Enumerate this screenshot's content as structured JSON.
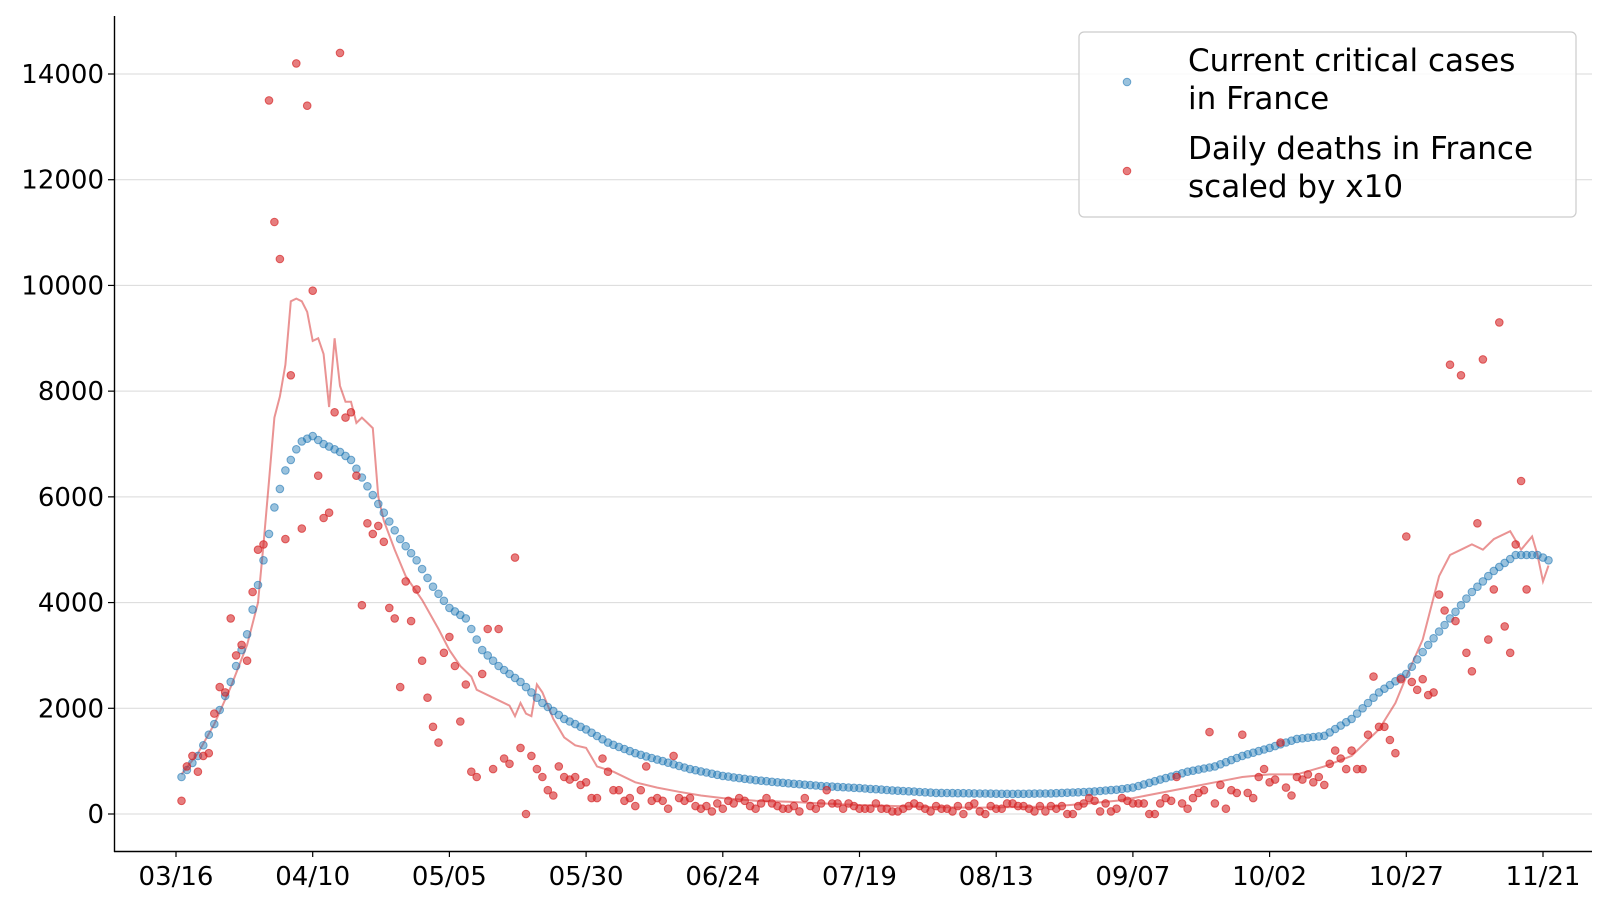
{
  "chart_data": {
    "type": "scatter",
    "x_unit": "date (2020)",
    "x_ticks": [
      "03/16",
      "04/10",
      "05/05",
      "05/30",
      "06/24",
      "07/19",
      "08/13",
      "09/07",
      "10/02",
      "10/27",
      "11/21"
    ],
    "y_ticks": [
      "0",
      "2000",
      "4000",
      "6000",
      "8000",
      "10000",
      "12000",
      "14000"
    ],
    "xlim": [
      "2020-03-15",
      "2020-11-26"
    ],
    "ylim": [
      -700,
      15000
    ],
    "grid": "y",
    "legend_position": "top-right",
    "x_start": "2020-03-17",
    "colors": {
      "critical": "#1f77b4",
      "deaths": "#d62728",
      "grid": "#d9d9d9"
    },
    "series": [
      {
        "name": "Current critical cases in France",
        "legend_lines": [
          "Current critical cases",
          "in France"
        ],
        "kind": "points",
        "anchors": [
          [
            "2020-03-17",
            700
          ],
          [
            "2020-03-20",
            1100
          ],
          [
            "2020-03-23",
            1700
          ],
          [
            "2020-03-26",
            2500
          ],
          [
            "2020-03-29",
            3400
          ],
          [
            "2020-04-01",
            4800
          ],
          [
            "2020-04-03",
            5800
          ],
          [
            "2020-04-05",
            6500
          ],
          [
            "2020-04-07",
            6900
          ],
          [
            "2020-04-08",
            7050
          ],
          [
            "2020-04-10",
            7150
          ],
          [
            "2020-04-12",
            7000
          ],
          [
            "2020-04-15",
            6850
          ],
          [
            "2020-04-17",
            6700
          ],
          [
            "2020-04-20",
            6200
          ],
          [
            "2020-04-23",
            5700
          ],
          [
            "2020-04-26",
            5200
          ],
          [
            "2020-04-29",
            4800
          ],
          [
            "2020-05-02",
            4300
          ],
          [
            "2020-05-05",
            3900
          ],
          [
            "2020-05-08",
            3700
          ],
          [
            "2020-05-11",
            3100
          ],
          [
            "2020-05-14",
            2800
          ],
          [
            "2020-05-18",
            2500
          ],
          [
            "2020-05-22",
            2100
          ],
          [
            "2020-05-26",
            1800
          ],
          [
            "2020-05-30",
            1600
          ],
          [
            "2020-06-03",
            1350
          ],
          [
            "2020-06-08",
            1150
          ],
          [
            "2020-06-13",
            1000
          ],
          [
            "2020-06-18",
            850
          ],
          [
            "2020-06-24",
            720
          ],
          [
            "2020-06-30",
            640
          ],
          [
            "2020-07-06",
            580
          ],
          [
            "2020-07-12",
            530
          ],
          [
            "2020-07-19",
            490
          ],
          [
            "2020-07-26",
            440
          ],
          [
            "2020-08-02",
            400
          ],
          [
            "2020-08-09",
            390
          ],
          [
            "2020-08-16",
            380
          ],
          [
            "2020-08-23",
            390
          ],
          [
            "2020-08-30",
            420
          ],
          [
            "2020-09-04",
            460
          ],
          [
            "2020-09-07",
            500
          ],
          [
            "2020-09-12",
            650
          ],
          [
            "2020-09-17",
            800
          ],
          [
            "2020-09-22",
            900
          ],
          [
            "2020-09-27",
            1100
          ],
          [
            "2020-10-02",
            1250
          ],
          [
            "2020-10-07",
            1420
          ],
          [
            "2020-10-12",
            1480
          ],
          [
            "2020-10-17",
            1800
          ],
          [
            "2020-10-22",
            2300
          ],
          [
            "2020-10-27",
            2650
          ],
          [
            "2020-10-31",
            3200
          ],
          [
            "2020-11-04",
            3700
          ],
          [
            "2020-11-08",
            4200
          ],
          [
            "2020-11-12",
            4600
          ],
          [
            "2020-11-16",
            4900
          ],
          [
            "2020-11-20",
            4900
          ],
          [
            "2020-11-22",
            4800
          ]
        ]
      },
      {
        "name": "Daily deaths in France scaled by x10",
        "legend_lines": [
          "Daily deaths in France",
          "scaled by x10"
        ],
        "kind": "points",
        "values": [
          250,
          900,
          1100,
          800,
          1100,
          1150,
          1900,
          2400,
          2300,
          3700,
          3000,
          3200,
          2900,
          4200,
          5000,
          5100,
          13500,
          11200,
          10500,
          5200,
          8300,
          14200,
          5400,
          13400,
          9900,
          6400,
          5600,
          5700,
          7600,
          14400,
          7500,
          7600,
          6400,
          3950,
          5500,
          5300,
          5450,
          5150,
          3900,
          3700,
          2400,
          4400,
          3650,
          4250,
          2900,
          2200,
          1650,
          1350,
          3050,
          3350,
          2800,
          1750,
          2450,
          800,
          700,
          2650,
          3500,
          850,
          3500,
          1050,
          950,
          4850,
          1250,
          0,
          1100,
          850,
          700,
          450,
          350,
          900,
          700,
          650,
          700,
          550,
          600,
          300,
          300,
          1050,
          800,
          450,
          450,
          250,
          300,
          150,
          450,
          900,
          250,
          300,
          250,
          100,
          1100,
          300,
          250,
          300,
          150,
          100,
          150,
          50,
          200,
          100,
          250,
          200,
          300,
          250,
          150,
          100,
          200,
          300,
          200,
          150,
          100,
          100,
          150,
          50,
          300,
          150,
          100,
          200,
          450,
          200,
          200,
          100,
          200,
          150,
          100,
          100,
          100,
          200,
          100,
          100,
          50,
          50,
          100,
          150,
          200,
          150,
          100,
          50,
          150,
          100,
          100,
          50,
          150,
          0,
          150,
          200,
          50,
          0,
          150,
          100,
          100,
          200,
          200,
          150,
          150,
          100,
          50,
          150,
          50,
          150,
          100,
          150,
          0,
          0,
          150,
          200,
          300,
          250,
          50,
          200,
          50,
          100,
          300,
          250,
          200,
          200,
          200,
          0,
          0,
          200,
          300,
          250,
          700,
          200,
          100,
          300,
          400,
          450,
          1550,
          200,
          550,
          100,
          450,
          400,
          1500,
          400,
          300,
          700,
          850,
          600,
          650,
          1350,
          500,
          350,
          700,
          650,
          750,
          600,
          700,
          550,
          950,
          1200,
          1050,
          850,
          1200,
          850,
          850,
          1500,
          2600,
          1650,
          1650,
          1400,
          1150,
          2550,
          5250,
          2500,
          2350,
          2550,
          2250,
          2300,
          4150,
          3850,
          8500,
          3650,
          8300,
          3050,
          2700,
          5500,
          8600,
          3300,
          4250,
          9300,
          3550,
          3050,
          5100,
          6300,
          4250
        ]
      },
      {
        "name": "Daily deaths in France scaled by x10 (rolling mean)",
        "kind": "line",
        "anchors": [
          [
            "2020-03-17",
            750
          ],
          [
            "2020-03-20",
            1150
          ],
          [
            "2020-03-23",
            1700
          ],
          [
            "2020-03-26",
            2400
          ],
          [
            "2020-03-29",
            3200
          ],
          [
            "2020-03-31",
            4000
          ],
          [
            "2020-04-01",
            5100
          ],
          [
            "2020-04-02",
            6300
          ],
          [
            "2020-04-03",
            7500
          ],
          [
            "2020-04-04",
            7900
          ],
          [
            "2020-04-05",
            8500
          ],
          [
            "2020-04-06",
            9700
          ],
          [
            "2020-04-07",
            9750
          ],
          [
            "2020-04-08",
            9700
          ],
          [
            "2020-04-09",
            9500
          ],
          [
            "2020-04-10",
            8950
          ],
          [
            "2020-04-11",
            9000
          ],
          [
            "2020-04-12",
            8700
          ],
          [
            "2020-04-13",
            7700
          ],
          [
            "2020-04-14",
            9000
          ],
          [
            "2020-04-15",
            8100
          ],
          [
            "2020-04-16",
            7800
          ],
          [
            "2020-04-17",
            7800
          ],
          [
            "2020-04-18",
            7400
          ],
          [
            "2020-04-19",
            7500
          ],
          [
            "2020-04-20",
            7400
          ],
          [
            "2020-04-21",
            7300
          ],
          [
            "2020-04-22",
            6000
          ],
          [
            "2020-04-23",
            5550
          ],
          [
            "2020-04-25",
            5000
          ],
          [
            "2020-04-27",
            4500
          ],
          [
            "2020-04-30",
            4050
          ],
          [
            "2020-05-03",
            3500
          ],
          [
            "2020-05-05",
            3100
          ],
          [
            "2020-05-07",
            2800
          ],
          [
            "2020-05-09",
            2600
          ],
          [
            "2020-05-10",
            2350
          ],
          [
            "2020-05-13",
            2200
          ],
          [
            "2020-05-16",
            2050
          ],
          [
            "2020-05-17",
            1850
          ],
          [
            "2020-05-18",
            2100
          ],
          [
            "2020-05-19",
            1900
          ],
          [
            "2020-05-20",
            1850
          ],
          [
            "2020-05-21",
            2450
          ],
          [
            "2020-05-22",
            2300
          ],
          [
            "2020-05-24",
            1800
          ],
          [
            "2020-05-26",
            1450
          ],
          [
            "2020-05-28",
            1300
          ],
          [
            "2020-05-30",
            1250
          ],
          [
            "2020-06-01",
            900
          ],
          [
            "2020-06-04",
            800
          ],
          [
            "2020-06-08",
            600
          ],
          [
            "2020-06-12",
            500
          ],
          [
            "2020-06-16",
            420
          ],
          [
            "2020-06-20",
            350
          ],
          [
            "2020-06-24",
            300
          ],
          [
            "2020-06-30",
            250
          ],
          [
            "2020-07-06",
            230
          ],
          [
            "2020-07-12",
            200
          ],
          [
            "2020-07-19",
            170
          ],
          [
            "2020-07-26",
            150
          ],
          [
            "2020-08-02",
            130
          ],
          [
            "2020-08-09",
            120
          ],
          [
            "2020-08-16",
            130
          ],
          [
            "2020-08-23",
            140
          ],
          [
            "2020-08-30",
            200
          ],
          [
            "2020-09-04",
            250
          ],
          [
            "2020-09-07",
            300
          ],
          [
            "2020-09-12",
            400
          ],
          [
            "2020-09-17",
            500
          ],
          [
            "2020-09-22",
            600
          ],
          [
            "2020-09-27",
            700
          ],
          [
            "2020-10-02",
            750
          ],
          [
            "2020-10-07",
            750
          ],
          [
            "2020-10-12",
            900
          ],
          [
            "2020-10-17",
            1100
          ],
          [
            "2020-10-22",
            1600
          ],
          [
            "2020-10-25",
            2100
          ],
          [
            "2020-10-27",
            2600
          ],
          [
            "2020-10-30",
            3300
          ],
          [
            "2020-11-02",
            4500
          ],
          [
            "2020-11-04",
            4900
          ],
          [
            "2020-11-06",
            5000
          ],
          [
            "2020-11-08",
            5100
          ],
          [
            "2020-11-10",
            5000
          ],
          [
            "2020-11-12",
            5200
          ],
          [
            "2020-11-15",
            5350
          ],
          [
            "2020-11-17",
            5000
          ],
          [
            "2020-11-19",
            5250
          ],
          [
            "2020-11-20",
            4900
          ],
          [
            "2020-11-21",
            4400
          ],
          [
            "2020-11-22",
            4700
          ]
        ]
      }
    ]
  }
}
